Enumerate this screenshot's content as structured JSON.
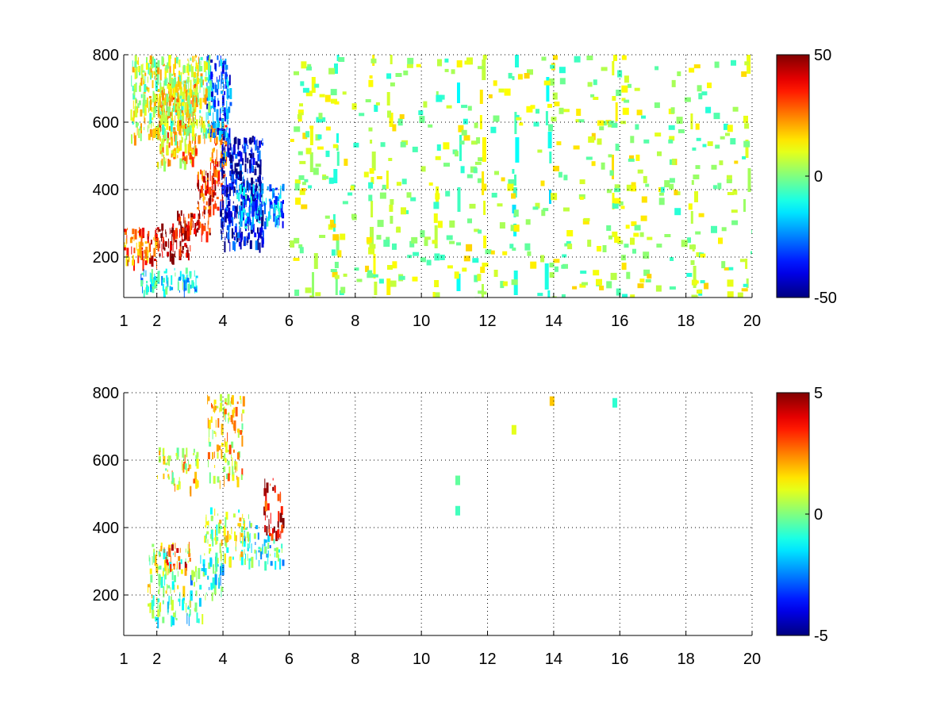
{
  "chart_data": [
    {
      "type": "heatmap",
      "title": "",
      "xlabel": "",
      "ylabel": "",
      "xlim": [
        1,
        20
      ],
      "ylim": [
        80,
        800
      ],
      "grid": true,
      "x_ticks": [
        "1",
        "2",
        "4",
        "6",
        "8",
        "10",
        "12",
        "14",
        "16",
        "18",
        "20"
      ],
      "x_tick_values": [
        1,
        2,
        4,
        6,
        8,
        10,
        12,
        14,
        16,
        18,
        20
      ],
      "y_ticks": [
        "200",
        "400",
        "600",
        "800"
      ],
      "y_tick_values": [
        200,
        400,
        600,
        800
      ],
      "colorbar": {
        "min": -50,
        "max": 50,
        "ticks": [
          "-50",
          "0",
          "50"
        ],
        "tick_values": [
          -50,
          0,
          50
        ],
        "colormap": "jet"
      },
      "regions": [
        {
          "x": [
            1.0,
            2.0
          ],
          "y": [
            190,
            290
          ],
          "value": 30
        },
        {
          "x": [
            2.0,
            3.0
          ],
          "y": [
            210,
            300
          ],
          "value": 44
        },
        {
          "x": [
            2.6,
            3.6
          ],
          "y": [
            270,
            340
          ],
          "value": 40
        },
        {
          "x": [
            3.2,
            4.0
          ],
          "y": [
            340,
            460
          ],
          "value": 36
        },
        {
          "x": [
            3.6,
            4.1
          ],
          "y": [
            440,
            600
          ],
          "value": 26
        },
        {
          "x": [
            2.0,
            3.2
          ],
          "y": [
            480,
            720
          ],
          "value": 18
        },
        {
          "x": [
            3.5,
            4.2
          ],
          "y": [
            560,
            800
          ],
          "value": -28
        },
        {
          "x": [
            3.9,
            5.2
          ],
          "y": [
            240,
            560
          ],
          "value": -40
        },
        {
          "x": [
            4.4,
            5.8
          ],
          "y": [
            300,
            420
          ],
          "value": -22
        },
        {
          "x": [
            1.5,
            3.2
          ],
          "y": [
            100,
            170
          ],
          "value": -12
        },
        {
          "x": [
            1.2,
            3.6
          ],
          "y": [
            560,
            800
          ],
          "value": 8
        }
      ],
      "stripes": [
        {
          "x": 6.7,
          "value": 6
        },
        {
          "x": 7.4,
          "value": -5
        },
        {
          "x": 8.5,
          "value": 10
        },
        {
          "x": 9.0,
          "value": 8
        },
        {
          "x": 10.4,
          "value": 6
        },
        {
          "x": 11.1,
          "value": -12
        },
        {
          "x": 11.8,
          "value": 10
        },
        {
          "x": 12.8,
          "value": -10
        },
        {
          "x": 13.8,
          "value": -12
        },
        {
          "x": 15.8,
          "value": 14
        },
        {
          "x": 18.2,
          "value": 8
        },
        {
          "x": 19.8,
          "value": 6
        }
      ]
    },
    {
      "type": "heatmap",
      "title": "",
      "xlabel": "",
      "ylabel": "",
      "xlim": [
        1,
        20
      ],
      "ylim": [
        80,
        800
      ],
      "grid": true,
      "x_ticks": [
        "1",
        "2",
        "4",
        "6",
        "8",
        "10",
        "12",
        "14",
        "16",
        "18",
        "20"
      ],
      "x_tick_values": [
        1,
        2,
        4,
        6,
        8,
        10,
        12,
        14,
        16,
        18,
        20
      ],
      "y_ticks": [
        "200",
        "400",
        "600",
        "800"
      ],
      "y_tick_values": [
        200,
        400,
        600,
        800
      ],
      "colorbar": {
        "min": -5,
        "max": 5,
        "ticks": [
          "-5",
          "0",
          "5"
        ],
        "tick_values": [
          -5,
          0,
          5
        ],
        "colormap": "jet"
      },
      "regions": [
        {
          "x": [
            1.7,
            3.0
          ],
          "y": [
            170,
            360
          ],
          "value": 0.4
        },
        {
          "x": [
            2.2,
            3.0
          ],
          "y": [
            280,
            360
          ],
          "value": 3.5
        },
        {
          "x": [
            3.0,
            4.0
          ],
          "y": [
            200,
            320
          ],
          "value": -1.0
        },
        {
          "x": [
            3.4,
            4.8
          ],
          "y": [
            300,
            460
          ],
          "value": 0.5
        },
        {
          "x": [
            2.0,
            3.2
          ],
          "y": [
            520,
            640
          ],
          "value": 1.2
        },
        {
          "x": [
            3.5,
            4.6
          ],
          "y": [
            540,
            800
          ],
          "value": 1.4
        },
        {
          "x": [
            4.6,
            5.8
          ],
          "y": [
            300,
            420
          ],
          "value": -1.2
        },
        {
          "x": [
            5.2,
            5.8
          ],
          "y": [
            380,
            560
          ],
          "value": 4.2
        },
        {
          "x": [
            1.8,
            3.4
          ],
          "y": [
            130,
            200
          ],
          "value": -0.8
        }
      ],
      "stripes": [],
      "specks": [
        {
          "x": 11.1,
          "y": 450,
          "value": -0.6
        },
        {
          "x": 11.1,
          "y": 540,
          "value": -0.3
        },
        {
          "x": 12.8,
          "y": 690,
          "value": 1.0
        },
        {
          "x": 13.95,
          "y": 775,
          "value": 1.8
        },
        {
          "x": 15.85,
          "y": 770,
          "value": -0.8
        }
      ]
    }
  ]
}
